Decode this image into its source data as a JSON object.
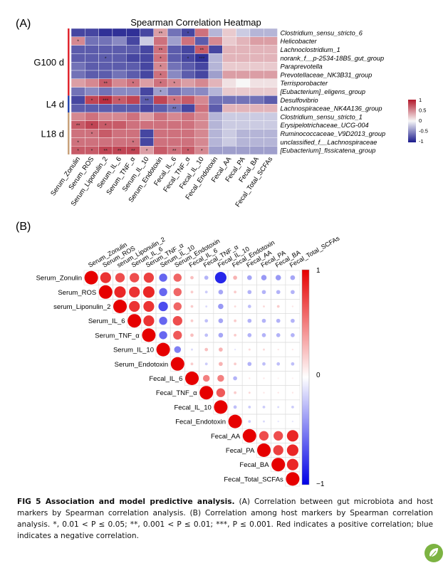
{
  "panel_a": {
    "label": "(A)",
    "title": "Spearman Correlation Heatmap",
    "groups": [
      {
        "label": "G100 d",
        "color": "#e0262f"
      },
      {
        "label": "L4 d",
        "color": "#2646b0"
      },
      {
        "label": "L18 d",
        "color": "#c8a17a"
      }
    ],
    "legend_ticks": [
      "1",
      "0.5",
      "0",
      "-0.5",
      "-1"
    ]
  },
  "panel_b": {
    "label": "(B)",
    "legend_ticks": [
      "1",
      "0",
      "−1"
    ]
  },
  "chart_data": [
    {
      "type": "heatmap",
      "title": "Spearman Correlation Heatmap",
      "columns": [
        "Serum_Zonulin",
        "Serum_ROS",
        "Serum_Liponulin_2",
        "Serum_IL_6",
        "Serum_TNF_α",
        "Serum_IL_10",
        "Serum_Endotoxin",
        "Fecal_IL_6",
        "Fecal_TNF_α",
        "Fecal_IL_10",
        "Fecal_Endotoxin",
        "Fecal_AA",
        "Fecal_PA",
        "Fecal_BA",
        "Fecal_Total_SCFAs"
      ],
      "rows": [
        "Clostridium_sensu_stricto_6",
        "Helicobacter",
        "Lachnoclostridium_1",
        "norank_f__p-2534-18B5_gut_group",
        "Paraprevotella",
        "Prevotellaceae_NK3B31_group",
        "Terrisporobacter",
        "[Eubacterium]_eligens_group",
        "Desulfovibrio",
        "Lachnospiraceae_NK4A136_group",
        "Clostridium_sensu_stricto_1",
        "Erysipelotrichaceae_UCG-004",
        "Ruminococcaceae_V9D2013_group",
        "unclassified_f__Lachnospiraceae",
        "[Eubacterium]_fissicatena_group"
      ],
      "row_groups": [
        {
          "label": "G100 d",
          "rows": [
            0,
            1,
            2,
            3,
            4,
            5,
            6,
            7
          ]
        },
        {
          "label": "L4 d",
          "rows": [
            8,
            9
          ]
        },
        {
          "label": "L18 d",
          "rows": [
            10,
            11,
            12,
            13,
            14
          ]
        }
      ],
      "values": [
        [
          -0.8,
          -0.8,
          -0.9,
          -0.9,
          -0.9,
          -0.8,
          0.4,
          -0.6,
          -0.8,
          0.6,
          -0.3,
          0.2,
          -0.2,
          -0.3,
          -0.3
        ],
        [
          0.5,
          -0.6,
          -0.6,
          -0.5,
          -0.8,
          -0.2,
          0.6,
          -0.4,
          0.6,
          -0.7,
          0.5,
          0.2,
          0.3,
          0.4,
          0.4
        ],
        [
          -0.7,
          -0.7,
          -0.7,
          -0.7,
          -0.7,
          -0.8,
          0.6,
          -0.7,
          -0.8,
          0.7,
          -0.8,
          0.3,
          0.3,
          0.3,
          0.3
        ],
        [
          -0.7,
          -0.7,
          -0.7,
          -0.7,
          -0.8,
          -0.8,
          0.6,
          -0.7,
          -0.8,
          -0.9,
          -0.3,
          0.3,
          0.3,
          0.3,
          0.3
        ],
        [
          -0.6,
          -0.7,
          -0.7,
          -0.7,
          -0.7,
          -0.8,
          0.5,
          -0.6,
          -0.7,
          -0.8,
          -0.3,
          0.2,
          0.2,
          0.2,
          0.2
        ],
        [
          -0.6,
          -0.7,
          -0.7,
          -0.6,
          -0.7,
          -0.8,
          0.6,
          -0.5,
          -0.7,
          -0.8,
          -0.4,
          0.4,
          0.4,
          0.4,
          0.4
        ],
        [
          0.4,
          0.5,
          0.7,
          0.5,
          0.6,
          0.4,
          0.6,
          0.5,
          0.4,
          0.5,
          0.3,
          0.1,
          0.0,
          0.1,
          0.1
        ],
        [
          -0.6,
          -0.5,
          -0.6,
          -0.5,
          -0.5,
          -0.8,
          -0.4,
          -0.6,
          -0.5,
          -0.5,
          -0.3,
          0.2,
          0.2,
          0.2,
          0.2
        ],
        [
          -0.8,
          0.8,
          0.9,
          0.7,
          0.8,
          -0.7,
          0.8,
          0.6,
          0.7,
          0.5,
          -0.6,
          -0.6,
          -0.6,
          -0.6,
          -0.7
        ],
        [
          -0.7,
          -0.7,
          -0.7,
          -0.7,
          -0.7,
          -0.8,
          -0.7,
          -0.6,
          -0.8,
          0.6,
          -0.7,
          0.3,
          0.3,
          0.3,
          0.3
        ],
        [
          0.5,
          0.6,
          0.5,
          0.5,
          0.6,
          0.4,
          0.6,
          0.5,
          0.6,
          0.5,
          -0.3,
          -0.2,
          -0.2,
          -0.2,
          -0.2
        ],
        [
          0.7,
          0.8,
          0.7,
          0.7,
          0.6,
          0.6,
          0.6,
          0.6,
          0.6,
          0.5,
          -0.3,
          -0.2,
          -0.2,
          -0.2,
          -0.2
        ],
        [
          0.6,
          0.6,
          0.7,
          0.6,
          0.6,
          -0.8,
          0.6,
          0.6,
          0.6,
          0.5,
          -0.3,
          -0.2,
          -0.3,
          -0.3,
          -0.3
        ],
        [
          0.6,
          0.6,
          0.6,
          0.6,
          0.6,
          -0.8,
          0.6,
          0.6,
          0.6,
          0.5,
          -0.3,
          -0.2,
          -0.3,
          -0.3,
          -0.3
        ],
        [
          0.7,
          0.7,
          0.8,
          0.8,
          0.8,
          0.4,
          0.7,
          0.6,
          0.7,
          0.5,
          -0.4,
          -0.4,
          -0.4,
          -0.4,
          -0.4
        ]
      ],
      "significance": [
        [
          null,
          null,
          null,
          null,
          null,
          null,
          "**",
          null,
          "*",
          null,
          null,
          null,
          null,
          null,
          null
        ],
        [
          "*",
          null,
          null,
          null,
          null,
          null,
          null,
          null,
          null,
          null,
          null,
          null,
          null,
          null,
          null
        ],
        [
          null,
          null,
          null,
          null,
          null,
          null,
          "**",
          null,
          null,
          "**",
          null,
          null,
          null,
          null,
          null
        ],
        [
          null,
          null,
          "*",
          null,
          null,
          null,
          "*",
          null,
          "*",
          "***",
          null,
          null,
          null,
          null,
          null
        ],
        [
          null,
          null,
          null,
          null,
          null,
          null,
          "*",
          null,
          null,
          null,
          null,
          null,
          null,
          null,
          null
        ],
        [
          null,
          null,
          null,
          null,
          null,
          null,
          "*",
          null,
          null,
          null,
          null,
          null,
          null,
          null,
          null
        ],
        [
          null,
          null,
          "**",
          null,
          "*",
          null,
          "*",
          "*",
          null,
          null,
          null,
          null,
          null,
          null,
          null
        ],
        [
          null,
          null,
          null,
          null,
          null,
          null,
          "*",
          null,
          null,
          null,
          null,
          null,
          null,
          null,
          null
        ],
        [
          null,
          "*",
          "***",
          "*",
          null,
          "**",
          null,
          "*",
          null,
          null,
          null,
          null,
          null,
          null,
          null
        ],
        [
          null,
          null,
          null,
          null,
          null,
          null,
          null,
          "**",
          null,
          null,
          null,
          null,
          null,
          null,
          null
        ],
        [
          null,
          null,
          null,
          null,
          null,
          null,
          null,
          null,
          null,
          null,
          null,
          null,
          null,
          null,
          null
        ],
        [
          "**",
          "*",
          "*",
          null,
          null,
          null,
          null,
          null,
          null,
          null,
          null,
          null,
          null,
          null,
          null
        ],
        [
          null,
          "*",
          null,
          null,
          null,
          null,
          null,
          null,
          null,
          null,
          null,
          null,
          null,
          null,
          null
        ],
        [
          "*",
          null,
          null,
          null,
          "*",
          null,
          null,
          null,
          null,
          null,
          null,
          null,
          null,
          null,
          null
        ],
        [
          "*",
          "*",
          "**",
          "**",
          "**",
          "*",
          null,
          "**",
          "*",
          "*",
          null,
          null,
          null,
          null,
          null
        ]
      ],
      "color_range": [
        -1,
        1
      ]
    },
    {
      "type": "heatmap",
      "subtype": "correlogram-upper",
      "columns": [
        "Serum_Zonulin",
        "Serum_ROS",
        "serum_Liponulin_2",
        "Serum_IL_6",
        "Serum_TNF_α",
        "Serum_IL_10",
        "Serum_Endotoxin",
        "Fecal_IL_6",
        "Fecal_TNF_α",
        "Fecal_IL_10",
        "Fecal_Endotoxin",
        "Fecal_AA",
        "Fecal_PA",
        "Fecal_BA",
        "Fecal_Total_SCFAs"
      ],
      "rows": [
        "Serum_Zonulin",
        "Serum_ROS",
        "serum_Liponulin_2",
        "Serum_IL_6",
        "Serum_TNF_α",
        "Serum_IL_10",
        "Serum_Endotoxin",
        "Fecal_IL_6",
        "Fecal_TNF_α",
        "Fecal_IL_10",
        "Fecal_Endotoxin",
        "Fecal_AA",
        "Fecal_PA",
        "Fecal_BA",
        "Fecal_Total_SCFAs"
      ],
      "color_range": [
        -1,
        1
      ],
      "values": [
        [
          1,
          0.8,
          0.7,
          0.7,
          0.75,
          -0.6,
          0.6,
          0.25,
          -0.3,
          -0.85,
          0.3,
          -0.35,
          -0.4,
          -0.4,
          -0.35
        ],
        [
          0.8,
          1,
          0.85,
          0.8,
          0.85,
          -0.6,
          0.6,
          0.2,
          -0.2,
          -0.35,
          0.2,
          -0.3,
          -0.3,
          -0.3,
          -0.3
        ],
        [
          0.7,
          0.85,
          1,
          0.8,
          0.8,
          -0.7,
          0.6,
          0.2,
          -0.15,
          -0.4,
          0.15,
          -0.25,
          0.15,
          0.2,
          0.1
        ],
        [
          0.7,
          0.8,
          0.8,
          1,
          0.8,
          -0.6,
          0.7,
          0.2,
          -0.25,
          -0.35,
          0.2,
          -0.3,
          -0.3,
          -0.3,
          -0.3
        ],
        [
          0.75,
          0.85,
          0.8,
          0.8,
          1,
          -0.6,
          0.65,
          0.25,
          -0.25,
          -0.35,
          0.2,
          -0.3,
          -0.3,
          -0.3,
          -0.3
        ],
        [
          -0.6,
          -0.6,
          -0.7,
          -0.6,
          -0.6,
          1,
          -0.5,
          -0.15,
          0.25,
          0.3,
          -0.1,
          0.15,
          0.15,
          0.1,
          0.1
        ],
        [
          0.6,
          0.6,
          0.6,
          0.7,
          0.65,
          -0.5,
          1,
          0.2,
          -0.2,
          0.3,
          0.2,
          -0.3,
          -0.25,
          -0.25,
          -0.25
        ],
        [
          0.25,
          0.2,
          0.2,
          0.2,
          0.25,
          -0.15,
          0.2,
          1,
          0.5,
          0.5,
          -0.3,
          0.1,
          0.1,
          0.05,
          0.05
        ],
        [
          -0.3,
          -0.2,
          -0.15,
          -0.25,
          -0.25,
          0.25,
          -0.2,
          0.5,
          1,
          0.65,
          0.2,
          0.15,
          0.1,
          0.1,
          0.1
        ],
        [
          -0.85,
          -0.35,
          -0.4,
          -0.35,
          -0.35,
          0.3,
          0.3,
          0.5,
          0.65,
          1,
          -0.25,
          -0.2,
          -0.2,
          -0.15,
          -0.2
        ],
        [
          0.3,
          0.2,
          0.15,
          0.2,
          0.2,
          -0.1,
          0.2,
          -0.3,
          0.2,
          -0.25,
          1,
          -0.2,
          -0.15,
          -0.1,
          -0.1
        ],
        [
          -0.35,
          -0.3,
          -0.25,
          -0.3,
          -0.3,
          0.15,
          -0.3,
          0.1,
          0.15,
          -0.2,
          -0.2,
          1,
          0.7,
          0.7,
          0.85
        ],
        [
          -0.4,
          -0.3,
          0.15,
          -0.3,
          -0.3,
          0.15,
          -0.25,
          0.1,
          0.1,
          -0.2,
          -0.15,
          0.7,
          1,
          0.75,
          0.85
        ],
        [
          -0.4,
          -0.3,
          0.2,
          -0.3,
          -0.3,
          0.1,
          -0.25,
          0.05,
          0.1,
          -0.15,
          -0.1,
          0.7,
          0.75,
          1,
          0.85
        ],
        [
          -0.35,
          -0.3,
          0.1,
          -0.3,
          -0.3,
          0.1,
          -0.25,
          0.05,
          0.1,
          -0.2,
          -0.1,
          0.85,
          0.85,
          0.85,
          1
        ]
      ]
    }
  ],
  "caption": {
    "lead": "FIG 5 Association and model predictive analysis.",
    "body": " (A) Correlation between gut microbiota and host markers by Spearman correlation analysis. (B) Correlation among host markers by Spearman correlation analysis. *, 0.01 < P ≤ 0.05; **, 0.001 < P ≤ 0.01; ***, P ≤ 0.001. Red indicates a positive correlation; blue indicates a negative correlation."
  }
}
